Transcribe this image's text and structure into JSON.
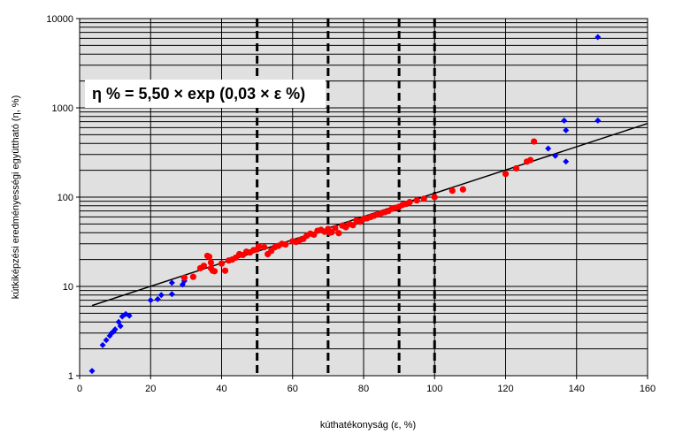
{
  "chart_data": {
    "type": "scatter",
    "title": "",
    "xlabel": "kúthatékonyság (ε, %)",
    "ylabel": "kútkiképzési eredményességi együttható (η, %)",
    "xlim": [
      0,
      160
    ],
    "ylim": [
      1,
      10000
    ],
    "y_scale": "log",
    "grid": true,
    "x_ticks": [
      "0",
      "20",
      "40",
      "60",
      "80",
      "100",
      "120",
      "140",
      "160"
    ],
    "y_ticks": [
      "1",
      "10",
      "100",
      "1000",
      "10000"
    ],
    "formula_text": "η % = 5,50 × exp (0,03 × ε %)",
    "trendline": {
      "a": 5.5,
      "b": 0.03,
      "x_start": 3.5,
      "x_end": 160
    },
    "vertical_dashed_lines": [
      50,
      70,
      90,
      100
    ],
    "colors": {
      "plot_bg": "#e0e0e0",
      "red_series": "#ff0000",
      "blue_series": "#0000ff",
      "trend": "#000000"
    },
    "series": [
      {
        "marker": "diamond",
        "color": "#0000ff",
        "points": [
          [
            3.5,
            1.13
          ],
          [
            6.5,
            2.2
          ],
          [
            7.5,
            2.5
          ],
          [
            8.5,
            2.8
          ],
          [
            9.0,
            3.0
          ],
          [
            9.5,
            3.1
          ],
          [
            10.0,
            3.3
          ],
          [
            11.0,
            4.0
          ],
          [
            11.5,
            3.6
          ],
          [
            12.0,
            4.6
          ],
          [
            13.0,
            4.9
          ],
          [
            14.0,
            4.7
          ],
          [
            20.0,
            7.0
          ],
          [
            22.0,
            7.2
          ],
          [
            23.0,
            8.0
          ],
          [
            26.0,
            8.2
          ],
          [
            26.0,
            11.0
          ],
          [
            29.0,
            10.5
          ],
          [
            29.5,
            11.5
          ],
          [
            132.0,
            350
          ],
          [
            134.0,
            290
          ],
          [
            136.5,
            720
          ],
          [
            137.0,
            250
          ],
          [
            137.0,
            560
          ],
          [
            146.0,
            6200
          ],
          [
            146.0,
            720
          ]
        ]
      },
      {
        "marker": "circle",
        "color": "#ff0000",
        "points": [
          [
            29.5,
            12.5
          ],
          [
            32.0,
            12.8
          ],
          [
            34.0,
            16.0
          ],
          [
            35.0,
            17.0
          ],
          [
            36.0,
            22.0
          ],
          [
            36.5,
            21.5
          ],
          [
            37.0,
            18.5
          ],
          [
            37.0,
            16.0
          ],
          [
            37.5,
            15.0
          ],
          [
            38.0,
            14.8
          ],
          [
            40.0,
            18.0
          ],
          [
            41.0,
            15.0
          ],
          [
            42.0,
            19.5
          ],
          [
            43.0,
            20.0
          ],
          [
            44.0,
            21.0
          ],
          [
            45.0,
            23.0
          ],
          [
            46.0,
            22.5
          ],
          [
            47.0,
            24.5
          ],
          [
            48.0,
            24.0
          ],
          [
            49.0,
            25.5
          ],
          [
            50.0,
            26.0
          ],
          [
            50.5,
            28.0
          ],
          [
            52.0,
            27.5
          ],
          [
            53.0,
            23.0
          ],
          [
            54.0,
            25.0
          ],
          [
            55.0,
            27.5
          ],
          [
            56.0,
            28.5
          ],
          [
            57.0,
            30.0
          ],
          [
            58.0,
            29.5
          ],
          [
            60.0,
            32.0
          ],
          [
            61.0,
            31.5
          ],
          [
            62.0,
            33.0
          ],
          [
            63.0,
            34.0
          ],
          [
            64.0,
            37.0
          ],
          [
            65.0,
            39.0
          ],
          [
            66.0,
            38.0
          ],
          [
            67.0,
            42.0
          ],
          [
            68.0,
            43.0
          ],
          [
            69.0,
            41.0
          ],
          [
            70.0,
            44.0
          ],
          [
            70.5,
            40.0
          ],
          [
            71.0,
            40.5
          ],
          [
            72.0,
            45.0
          ],
          [
            73.0,
            39.5
          ],
          [
            74.0,
            48.0
          ],
          [
            75.0,
            46.0
          ],
          [
            76.0,
            50.0
          ],
          [
            77.0,
            48.5
          ],
          [
            78.0,
            55.0
          ],
          [
            79.0,
            53.0
          ],
          [
            80.0,
            57.0
          ],
          [
            81.0,
            58.0
          ],
          [
            82.0,
            60.0
          ],
          [
            83.0,
            62.0
          ],
          [
            84.0,
            64.0
          ],
          [
            85.0,
            66.0
          ],
          [
            86.0,
            68.0
          ],
          [
            87.0,
            70.0
          ],
          [
            88.0,
            74.0
          ],
          [
            89.0,
            76.0
          ],
          [
            90.0,
            78.0
          ],
          [
            91.0,
            82.0
          ],
          [
            92.0,
            84.0
          ],
          [
            93.0,
            88.0
          ],
          [
            95.0,
            92.0
          ],
          [
            97.0,
            96.0
          ],
          [
            100.0,
            100.0
          ],
          [
            105.0,
            118.0
          ],
          [
            108.0,
            122.0
          ],
          [
            120.0,
            182.0
          ],
          [
            123.0,
            210.0
          ],
          [
            126.0,
            250.0
          ],
          [
            127.0,
            260.0
          ],
          [
            128.0,
            420.0
          ]
        ]
      }
    ]
  }
}
